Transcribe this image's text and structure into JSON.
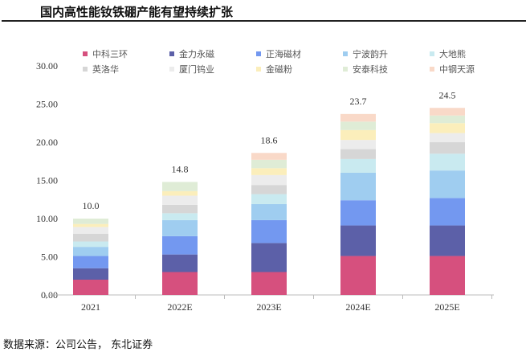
{
  "title": "国内高性能钕铁硼产能有望持续扩张",
  "source": "数据来源：公司公告，  东北证券",
  "chart_data": {
    "type": "bar",
    "stacked": true,
    "title": "国内高性能钕铁硼产能有望持续扩张",
    "xlabel": "",
    "ylabel": "",
    "ylim": [
      0,
      30
    ],
    "yticks": [
      "0.00",
      "5.00",
      "10.00",
      "15.00",
      "20.00",
      "25.00",
      "30.00"
    ],
    "categories": [
      "2021",
      "2022E",
      "2023E",
      "2024E",
      "2025E"
    ],
    "totals": [
      "10.0",
      "14.8",
      "18.6",
      "23.7",
      "24.5"
    ],
    "legend_position": "top",
    "series": [
      {
        "name": "中科三环",
        "color": "#d6507e",
        "values": [
          2.0,
          3.0,
          3.0,
          5.1,
          5.1
        ]
      },
      {
        "name": "金力永磁",
        "color": "#5c60a8",
        "values": [
          1.5,
          2.3,
          3.8,
          4.0,
          4.0
        ]
      },
      {
        "name": "正海磁材",
        "color": "#7398f0",
        "values": [
          1.6,
          2.4,
          3.0,
          3.3,
          3.6
        ]
      },
      {
        "name": "宁波韵升",
        "color": "#9fcdf0",
        "values": [
          1.2,
          2.1,
          2.1,
          3.6,
          3.6
        ]
      },
      {
        "name": "大地熊",
        "color": "#c9eaf0",
        "values": [
          0.7,
          0.9,
          1.3,
          1.8,
          2.2
        ]
      },
      {
        "name": "英洛华",
        "color": "#d6d6d6",
        "values": [
          1.0,
          1.1,
          1.2,
          1.3,
          1.5
        ]
      },
      {
        "name": "厦门钨业",
        "color": "#ececec",
        "values": [
          0.9,
          1.2,
          1.3,
          1.2,
          1.2
        ]
      },
      {
        "name": "金磁粉",
        "color": "#fbeebb",
        "values": [
          0.4,
          0.6,
          0.9,
          1.3,
          1.3
        ]
      },
      {
        "name": "安泰科技",
        "color": "#dfecd6",
        "values": [
          0.7,
          1.2,
          1.1,
          1.1,
          1.0
        ]
      },
      {
        "name": "中钢天源",
        "color": "#f9d9c8",
        "values": [
          0,
          0,
          0.9,
          1.0,
          1.0
        ]
      }
    ]
  }
}
